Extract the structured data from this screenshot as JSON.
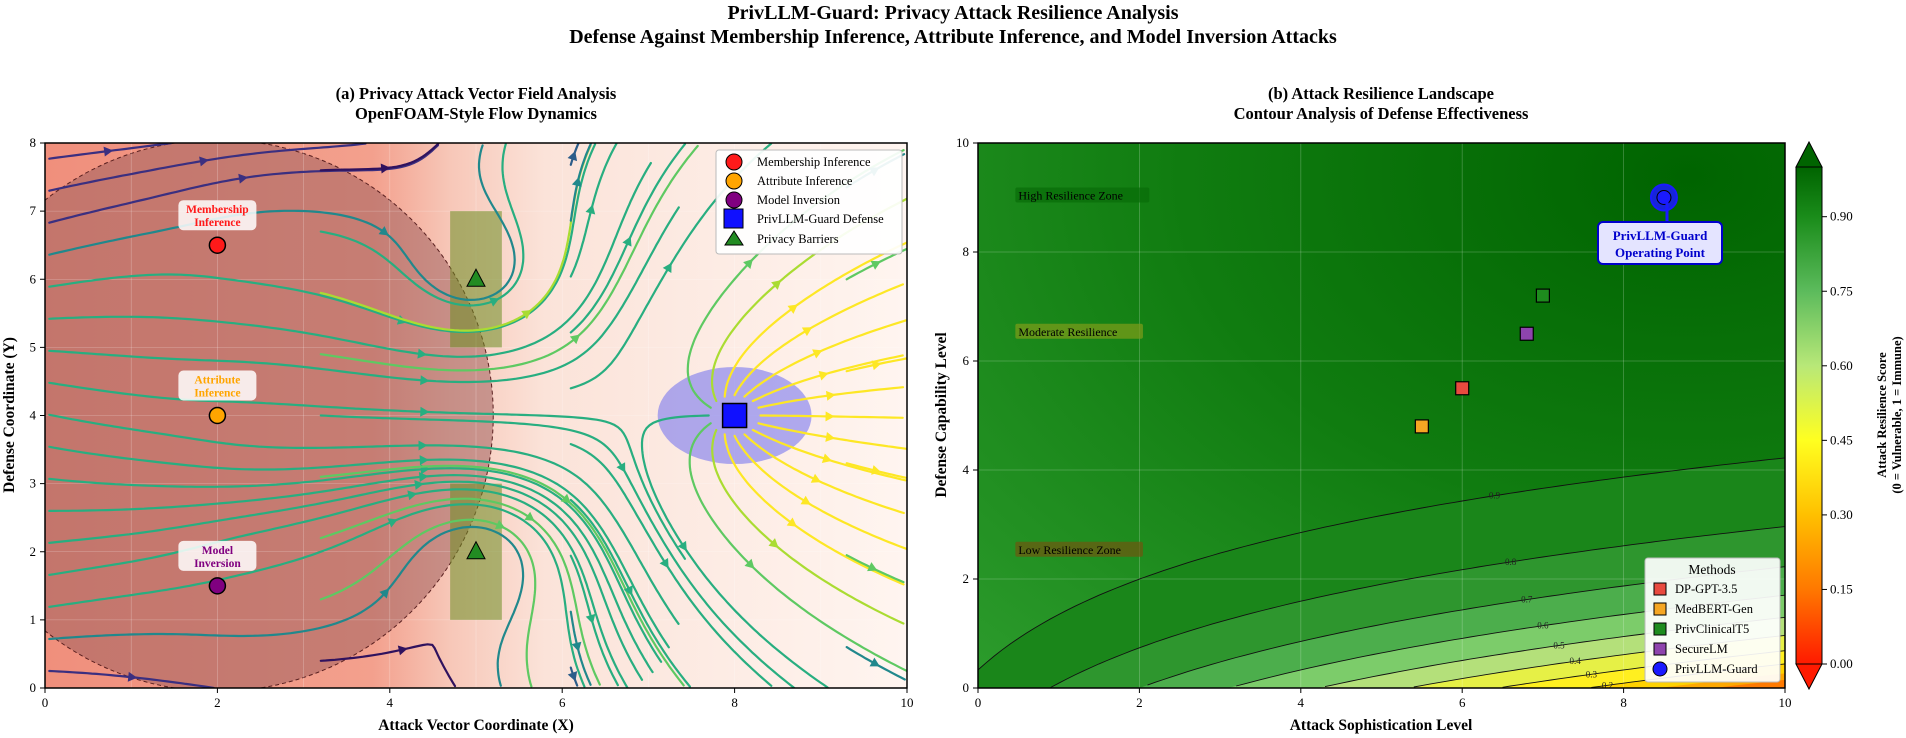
{
  "figure": {
    "title_line1": "PrivLLM-Guard: Privacy Attack Resilience Analysis",
    "title_line2": "Defense Against Membership Inference, Attribute Inference, and Model Inversion Attacks"
  },
  "chart_data": [
    {
      "type": "scatter",
      "title": "(a) Privacy Attack Vector Field Analysis",
      "subtitle": "OpenFOAM-Style Flow Dynamics",
      "xlabel": "Attack Vector Coordinate (X)",
      "ylabel": "Defense Coordinate (Y)",
      "xlim": [
        0,
        10
      ],
      "ylim": [
        0,
        8
      ],
      "xticks": [
        "0",
        "2",
        "4",
        "6",
        "8",
        "10"
      ],
      "yticks": [
        "0",
        "1",
        "2",
        "3",
        "4",
        "5",
        "6",
        "7",
        "8"
      ],
      "attacks": [
        {
          "name": "Membership Inference",
          "x": 2,
          "y": 6.5,
          "color": "#ff1a1a",
          "label_line1": "Membership",
          "label_line2": "Inference"
        },
        {
          "name": "Attribute Inference",
          "x": 2,
          "y": 4,
          "color": "#ffa500",
          "label_line1": "Attribute",
          "label_line2": "Inference"
        },
        {
          "name": "Model Inversion",
          "x": 2,
          "y": 1.5,
          "color": "#800080",
          "label_line1": "Model",
          "label_line2": "Inversion"
        }
      ],
      "defense": {
        "name": "PrivLLM-Guard Defense",
        "x": 8,
        "y": 4,
        "color": "#1010ff",
        "radius": 0.8
      },
      "barriers": {
        "name": "Privacy Barriers",
        "points": [
          {
            "x": 5,
            "y": 6
          },
          {
            "x": 5,
            "y": 2
          }
        ],
        "x_range": [
          4.7,
          5.3
        ],
        "y_ranges": [
          [
            5,
            7
          ],
          [
            1,
            3
          ]
        ],
        "color": "#228b22"
      },
      "threat_zone": {
        "center_x": 2,
        "center_y": 4,
        "radius": 3.2
      },
      "legend": [
        "Membership Inference",
        "Attribute Inference",
        "Model Inversion",
        "PrivLLM-Guard Defense",
        "Privacy Barriers"
      ],
      "legend_position": "top-right"
    },
    {
      "type": "heatmap",
      "title": "(b) Attack Resilience Landscape",
      "subtitle": "Contour Analysis of Defense Effectiveness",
      "xlabel": "Attack Sophistication Level",
      "ylabel": "Defense Capability Level",
      "xlim": [
        0,
        10
      ],
      "ylim": [
        0,
        10
      ],
      "xticks": [
        "0",
        "2",
        "4",
        "6",
        "8",
        "10"
      ],
      "yticks": [
        "0",
        "2",
        "4",
        "6",
        "8",
        "10"
      ],
      "zones": [
        {
          "text": "High Resilience Zone",
          "x": 0.5,
          "y": 9.0
        },
        {
          "text": "Moderate Resilience",
          "x": 0.5,
          "y": 6.5
        },
        {
          "text": "Low Resilience Zone",
          "x": 0.5,
          "y": 2.5
        }
      ],
      "contour_levels": [
        0.2,
        0.3,
        0.4,
        0.5,
        0.6,
        0.7,
        0.8,
        0.9
      ],
      "contour_labels": [
        "0.2",
        "0.3",
        "0.4",
        "0.5",
        "0.6",
        "0.7",
        "0.8",
        "0.9"
      ],
      "methods_title": "Methods",
      "methods": [
        {
          "name": "DP-GPT-3.5",
          "x": 6.0,
          "y": 5.5,
          "color": "#e84a3f",
          "marker": "square"
        },
        {
          "name": "MedBERT-Gen",
          "x": 5.5,
          "y": 4.8,
          "color": "#f5a623",
          "marker": "square"
        },
        {
          "name": "PrivClinicalT5",
          "x": 7.0,
          "y": 7.2,
          "color": "#1e8c1e",
          "marker": "square"
        },
        {
          "name": "SecureLM",
          "x": 6.8,
          "y": 6.5,
          "color": "#8e44ad",
          "marker": "square"
        },
        {
          "name": "PrivLLM-Guard",
          "x": 8.5,
          "y": 9.0,
          "color": "#1a1aff",
          "marker": "circle"
        }
      ],
      "operating_point": {
        "label_line1": "PrivLLM-Guard",
        "label_line2": "Operating Point"
      },
      "legend_position": "bottom-right",
      "colorbar": {
        "label_line1": "Attack Resilience Score",
        "label_line2": "(0 = Vulnerable, 1 = Immune)",
        "ticks": [
          "0.00",
          "0.15",
          "0.30",
          "0.45",
          "0.60",
          "0.75",
          "0.90"
        ],
        "tick_values": [
          0,
          0.15,
          0.3,
          0.45,
          0.6,
          0.75,
          0.9
        ],
        "range": [
          0,
          1
        ]
      }
    }
  ]
}
